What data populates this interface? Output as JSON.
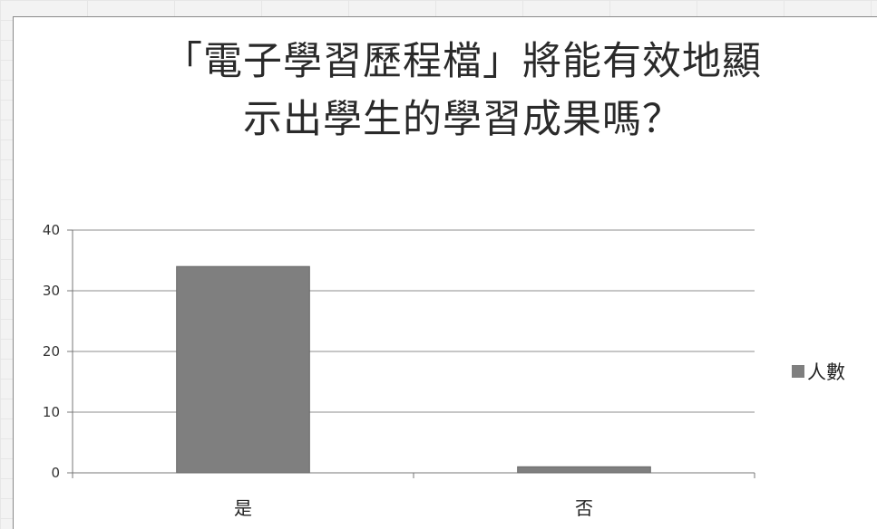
{
  "chart_data": {
    "type": "bar",
    "title": "「電子學習歷程檔」將能有效地顯示出學生的學習成果嗎？",
    "title_lines": [
      "「電子學習歷程檔」將能有效地顯",
      "示出學生的學習成果嗎？"
    ],
    "categories": [
      "是",
      "否"
    ],
    "series": [
      {
        "name": "人數",
        "values": [
          34,
          1
        ],
        "color": "#7f7f7f"
      }
    ],
    "xlabel": "",
    "ylabel": "",
    "ylim": [
      0,
      40
    ],
    "yticks": [
      "0",
      "10",
      "20",
      "30",
      "40"
    ],
    "grid": true,
    "legend_position": "right"
  }
}
